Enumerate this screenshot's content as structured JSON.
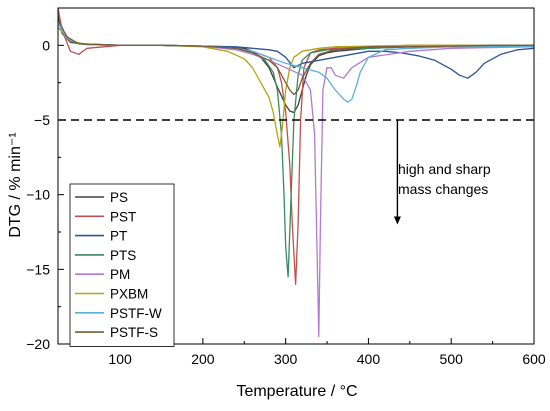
{
  "chart_data": {
    "type": "line",
    "xlabel": "Temperature / °C",
    "ylabel": "DTG / % min⁻¹",
    "xlim": [
      25,
      600
    ],
    "ylim": [
      -20,
      2.5
    ],
    "xticks": [
      100,
      200,
      300,
      400,
      500,
      600
    ],
    "yticks": [
      0,
      -5,
      -10,
      -15,
      -20
    ],
    "grid": false,
    "legend": "bottom-left",
    "reference_line": {
      "y": -5,
      "style": "dashed"
    },
    "annotation": {
      "text_lines": [
        "high and sharp",
        "mass changes"
      ],
      "arrow": {
        "x": 435,
        "y_from": -5,
        "y_to": -12
      }
    },
    "series": [
      {
        "name": "PS",
        "color": "#404040",
        "x": [
          25,
          30,
          40,
          60,
          100,
          150,
          200,
          230,
          250,
          260,
          270,
          280,
          290,
          300,
          305,
          310,
          315,
          320,
          325,
          330,
          340,
          350,
          360,
          380,
          400,
          450,
          500,
          550,
          600
        ],
        "y": [
          2.0,
          0.8,
          0.2,
          0.05,
          0.0,
          0.0,
          -0.05,
          -0.1,
          -0.2,
          -0.4,
          -0.8,
          -1.5,
          -2.8,
          -4.0,
          -4.4,
          -4.5,
          -4.0,
          -3.0,
          -2.0,
          -1.3,
          -0.7,
          -0.5,
          -0.4,
          -0.3,
          -0.2,
          -0.1,
          -0.05,
          -0.05,
          0.0
        ]
      },
      {
        "name": "PST",
        "color": "#c0504d",
        "x": [
          25,
          30,
          40,
          50,
          60,
          100,
          150,
          200,
          240,
          260,
          280,
          290,
          295,
          300,
          305,
          308,
          312,
          315,
          318,
          322,
          330,
          340,
          360,
          400,
          450,
          500,
          600
        ],
        "y": [
          2.5,
          1.0,
          -0.4,
          -0.6,
          -0.2,
          0.0,
          0.0,
          -0.05,
          -0.2,
          -0.4,
          -0.8,
          -1.5,
          -2.5,
          -4.5,
          -8.0,
          -12.0,
          -16.0,
          -12.0,
          -5.0,
          -1.5,
          -0.5,
          -0.3,
          -0.2,
          -0.1,
          0.0,
          0.0,
          0.0
        ]
      },
      {
        "name": "PT",
        "color": "#2f5597",
        "x": [
          25,
          35,
          50,
          100,
          150,
          200,
          240,
          260,
          280,
          290,
          300,
          310,
          320,
          340,
          360,
          380,
          400,
          420,
          440,
          460,
          480,
          500,
          510,
          520,
          530,
          540,
          560,
          580,
          600
        ],
        "y": [
          1.8,
          0.5,
          0.1,
          0.0,
          0.0,
          -0.05,
          -0.1,
          -0.2,
          -0.3,
          -0.4,
          -0.8,
          -1.5,
          -1.2,
          -1.0,
          -0.8,
          -0.6,
          -0.4,
          -0.4,
          -0.5,
          -0.7,
          -1.0,
          -1.6,
          -2.0,
          -2.2,
          -1.8,
          -1.2,
          -0.6,
          -0.3,
          -0.2
        ]
      },
      {
        "name": "PTS",
        "color": "#3a8a5f",
        "x": [
          25,
          35,
          50,
          100,
          150,
          200,
          240,
          260,
          275,
          285,
          290,
          295,
          298,
          300,
          303,
          306,
          310,
          315,
          320,
          330,
          350,
          400,
          450,
          500,
          550,
          600
        ],
        "y": [
          1.5,
          0.5,
          0.1,
          0.0,
          0.0,
          -0.05,
          -0.2,
          -0.5,
          -1.0,
          -1.8,
          -3.0,
          -6.0,
          -10.0,
          -13.5,
          -15.5,
          -11.0,
          -5.0,
          -2.0,
          -1.0,
          -0.5,
          -0.3,
          -0.2,
          -0.1,
          -0.1,
          -0.1,
          -0.1
        ]
      },
      {
        "name": "PM",
        "color": "#b37ad1",
        "x": [
          25,
          40,
          60,
          100,
          150,
          200,
          240,
          260,
          280,
          300,
          320,
          330,
          335,
          338,
          340,
          342,
          345,
          350,
          355,
          360,
          370,
          380,
          400,
          450,
          500,
          600
        ],
        "y": [
          1.5,
          0.3,
          0.05,
          0.0,
          0.0,
          -0.05,
          -0.3,
          -0.6,
          -1.0,
          -1.5,
          -2.0,
          -3.0,
          -6.0,
          -14.0,
          -19.5,
          -12.0,
          -3.0,
          -1.5,
          -1.5,
          -2.0,
          -2.2,
          -1.5,
          -0.8,
          -0.4,
          -0.2,
          -0.1
        ]
      },
      {
        "name": "PXBM",
        "color": "#b5a40f",
        "x": [
          25,
          40,
          60,
          100,
          150,
          200,
          230,
          250,
          260,
          270,
          280,
          285,
          290,
          293,
          296,
          300,
          305,
          310,
          320,
          340,
          360,
          400,
          450,
          500,
          550,
          600
        ],
        "y": [
          1.2,
          0.3,
          0.05,
          0.0,
          0.0,
          -0.1,
          -0.4,
          -0.9,
          -1.5,
          -2.5,
          -3.5,
          -4.5,
          -6.0,
          -6.8,
          -5.5,
          -3.0,
          -1.5,
          -0.8,
          -0.4,
          -0.2,
          -0.1,
          -0.05,
          0.0,
          0.0,
          0.0,
          0.0
        ]
      },
      {
        "name": "PSTF-W",
        "color": "#5ab0dc",
        "x": [
          25,
          35,
          50,
          100,
          150,
          200,
          240,
          260,
          280,
          300,
          320,
          340,
          350,
          360,
          370,
          375,
          380,
          385,
          390,
          400,
          420,
          450,
          500,
          550,
          600
        ],
        "y": [
          1.5,
          0.5,
          0.1,
          0.0,
          0.0,
          -0.05,
          -0.2,
          -0.4,
          -0.8,
          -1.2,
          -1.5,
          -1.8,
          -2.2,
          -3.0,
          -3.6,
          -3.8,
          -3.6,
          -2.8,
          -1.8,
          -0.8,
          -0.3,
          -0.2,
          -0.1,
          -0.1,
          -0.1
        ]
      },
      {
        "name": "PSTF-S",
        "color": "#7a5a3a",
        "x": [
          25,
          35,
          50,
          100,
          150,
          200,
          240,
          260,
          280,
          290,
          300,
          305,
          310,
          315,
          320,
          330,
          340,
          360,
          380,
          400,
          450,
          500,
          550,
          600
        ],
        "y": [
          1.8,
          0.6,
          0.1,
          0.0,
          0.0,
          -0.05,
          -0.2,
          -0.5,
          -1.0,
          -1.5,
          -2.5,
          -3.0,
          -3.3,
          -3.0,
          -2.2,
          -1.2,
          -0.6,
          -0.3,
          -0.2,
          -0.1,
          -0.1,
          -0.05,
          0.0,
          0.0
        ]
      }
    ]
  }
}
